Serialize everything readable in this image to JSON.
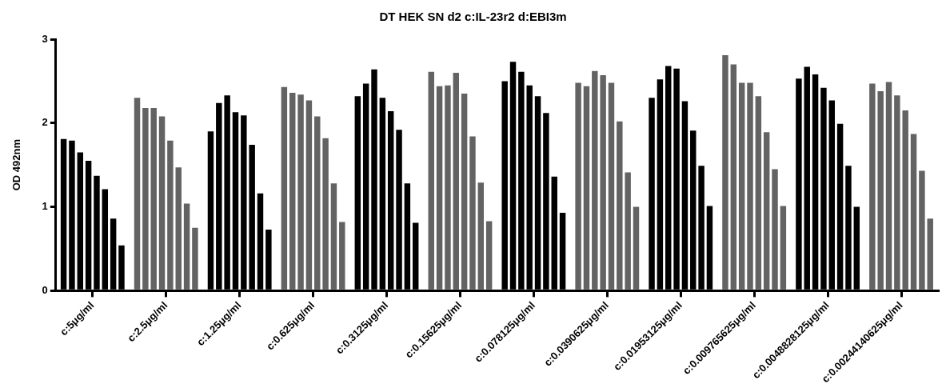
{
  "chart_data": {
    "type": "bar",
    "title": "DT HEK SN d2 c:IL-23r2 d:EBI3m",
    "ylabel": "OD 492nm",
    "categories": [
      "c:5μg/ml",
      "c:2.5μg/ml",
      "c:1.25μg/ml",
      "c:0.625μg/ml",
      "c:0.3125μg/ml",
      "c:0.15625μg/ml",
      "c:0.078125μg/ml",
      "c:0.0390625μg/ml",
      "c:0.01953125μg/ml",
      "c:0.009765625μg/ml",
      "c:0.0048828125μg/ml",
      "c:0.00244140625μg/ml"
    ],
    "series": [
      {
        "colors": [
          "#000000",
          "#636363",
          "#000000",
          "#636363",
          "#000000",
          "#636363",
          "#000000",
          "#636363",
          "#000000",
          "#636363",
          "#000000",
          "#636363"
        ],
        "values": [
          1.81,
          2.3,
          1.9,
          2.43,
          2.32,
          2.61,
          2.5,
          2.48,
          2.3,
          2.81,
          2.53,
          2.47
        ]
      },
      {
        "colors": [
          "#000000",
          "#636363",
          "#000000",
          "#636363",
          "#000000",
          "#636363",
          "#000000",
          "#636363",
          "#000000",
          "#636363",
          "#000000",
          "#636363"
        ],
        "values": [
          1.79,
          2.18,
          2.24,
          2.36,
          2.47,
          2.44,
          2.73,
          2.44,
          2.52,
          2.7,
          2.67,
          2.38
        ]
      },
      {
        "colors": [
          "#000000",
          "#636363",
          "#000000",
          "#636363",
          "#000000",
          "#636363",
          "#000000",
          "#636363",
          "#000000",
          "#636363",
          "#000000",
          "#636363"
        ],
        "values": [
          1.65,
          2.18,
          2.33,
          2.34,
          2.64,
          2.45,
          2.61,
          2.62,
          2.68,
          2.48,
          2.58,
          2.49
        ]
      },
      {
        "colors": [
          "#000000",
          "#636363",
          "#000000",
          "#636363",
          "#000000",
          "#636363",
          "#000000",
          "#636363",
          "#000000",
          "#636363",
          "#000000",
          "#636363"
        ],
        "values": [
          1.55,
          2.08,
          2.13,
          2.27,
          2.3,
          2.6,
          2.45,
          2.57,
          2.65,
          2.48,
          2.42,
          2.33
        ]
      },
      {
        "colors": [
          "#000000",
          "#636363",
          "#000000",
          "#636363",
          "#000000",
          "#636363",
          "#000000",
          "#636363",
          "#000000",
          "#636363",
          "#000000",
          "#636363"
        ],
        "values": [
          1.37,
          1.79,
          2.09,
          2.08,
          2.14,
          2.35,
          2.32,
          2.48,
          2.26,
          2.32,
          2.27,
          2.15
        ]
      },
      {
        "colors": [
          "#000000",
          "#636363",
          "#000000",
          "#636363",
          "#000000",
          "#636363",
          "#000000",
          "#636363",
          "#000000",
          "#636363",
          "#000000",
          "#636363"
        ],
        "values": [
          1.21,
          1.47,
          1.74,
          1.82,
          1.92,
          1.84,
          2.12,
          2.02,
          1.91,
          1.89,
          1.99,
          1.87
        ]
      },
      {
        "colors": [
          "#000000",
          "#636363",
          "#000000",
          "#636363",
          "#000000",
          "#636363",
          "#000000",
          "#636363",
          "#000000",
          "#636363",
          "#000000",
          "#636363"
        ],
        "values": [
          0.86,
          1.04,
          1.16,
          1.28,
          1.28,
          1.29,
          1.36,
          1.41,
          1.49,
          1.45,
          1.49,
          1.43
        ]
      },
      {
        "colors": [
          "#000000",
          "#636363",
          "#000000",
          "#636363",
          "#000000",
          "#636363",
          "#000000",
          "#636363",
          "#000000",
          "#636363",
          "#000000",
          "#636363"
        ],
        "values": [
          0.54,
          0.75,
          0.73,
          0.82,
          0.81,
          0.83,
          0.93,
          1.0,
          1.01,
          1.01,
          1.0,
          0.86
        ]
      }
    ],
    "ylim": [
      0,
      3
    ],
    "yticks": [
      0,
      1,
      2,
      3
    ],
    "grid": false,
    "legend": false
  }
}
